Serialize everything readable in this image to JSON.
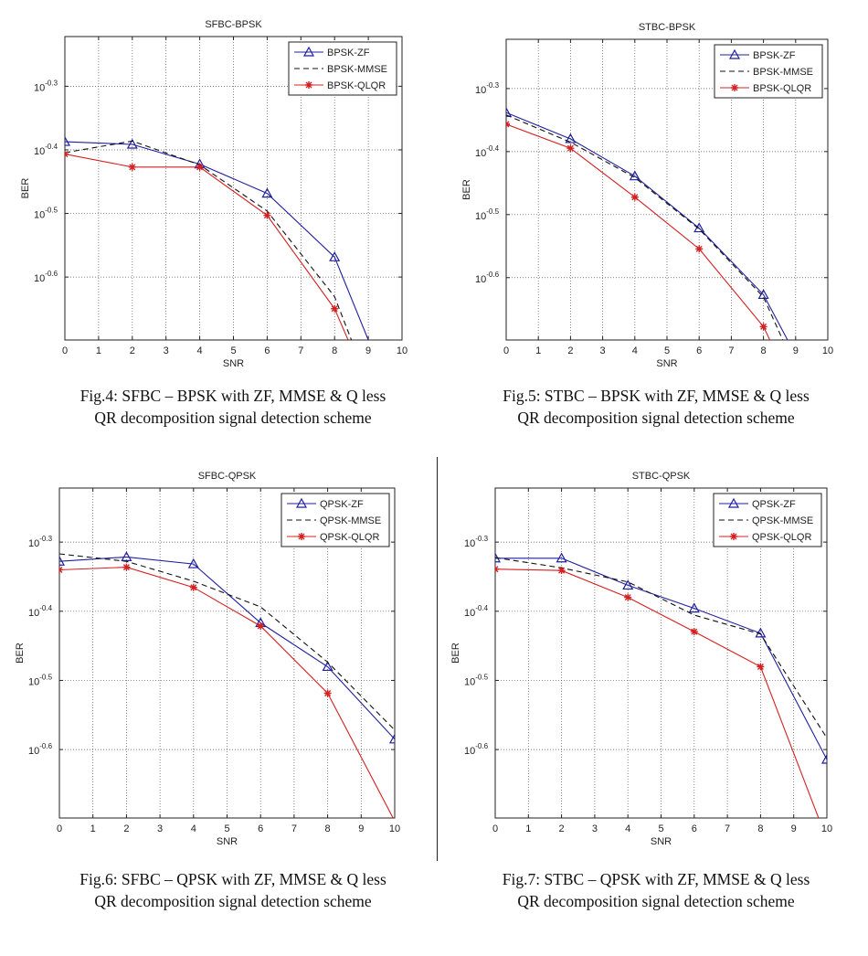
{
  "chart_data": [
    {
      "type": "line",
      "title": "SFBC-BPSK",
      "xlabel": "SNR",
      "ylabel": "BER",
      "yscale": "log",
      "xlim": [
        0,
        10
      ],
      "ylim": [
        0.2,
        0.6
      ],
      "xticks": [
        "0",
        "1",
        "2",
        "3",
        "4",
        "5",
        "6",
        "7",
        "8",
        "9",
        "10"
      ],
      "ytick_base": "10",
      "ytick_exponents": [
        "-0.3",
        "-0.4",
        "-0.5",
        "-0.6"
      ],
      "grid": true,
      "legend_position": "top-right",
      "caption": [
        "Fig.4: SFBC – BPSK with ZF, MMSE & Q less",
        "QR decomposition signal detection scheme"
      ],
      "series": [
        {
          "name": "BPSK-ZF",
          "color": "#1f1fa0",
          "style": "solid",
          "marker": "triangle",
          "x": [
            0,
            2,
            4,
            6,
            8,
            9
          ],
          "values": [
            0.41,
            0.406,
            0.378,
            0.34,
            0.27,
            0.2
          ]
        },
        {
          "name": "BPSK-MMSE",
          "color": "#111111",
          "style": "dashed",
          "marker": "none",
          "x": [
            0,
            2,
            4,
            6,
            8,
            8.5
          ],
          "values": [
            0.394,
            0.411,
            0.377,
            0.319,
            0.234,
            0.2
          ]
        },
        {
          "name": "BPSK-QLQR",
          "color": "#d42020",
          "style": "solid",
          "marker": "star",
          "x": [
            0,
            2,
            4,
            6,
            8,
            8.4
          ],
          "values": [
            0.392,
            0.374,
            0.374,
            0.314,
            0.224,
            0.2
          ]
        }
      ]
    },
    {
      "type": "line",
      "title": "STBC-BPSK",
      "xlabel": "SNR",
      "ylabel": "BER",
      "yscale": "log",
      "xlim": [
        0,
        10
      ],
      "ylim": [
        0.2,
        0.6
      ],
      "xticks": [
        "0",
        "1",
        "2",
        "3",
        "4",
        "5",
        "6",
        "7",
        "8",
        "9",
        "10"
      ],
      "ytick_base": "10",
      "ytick_exponents": [
        "-0.3",
        "-0.4",
        "-0.5",
        "-0.6"
      ],
      "grid": true,
      "legend_position": "top-right",
      "caption": [
        "Fig.5: STBC – BPSK with ZF, MMSE & Q less",
        "QR decomposition signal detection scheme"
      ],
      "series": [
        {
          "name": "BPSK-ZF",
          "color": "#1f1fa0",
          "style": "solid",
          "marker": "triangle",
          "x": [
            0,
            2,
            4,
            6,
            8,
            8.75
          ],
          "values": [
            0.459,
            0.417,
            0.364,
            0.301,
            0.236,
            0.2
          ]
        },
        {
          "name": "BPSK-MMSE",
          "color": "#111111",
          "style": "dashed",
          "marker": "none",
          "x": [
            0,
            2,
            4,
            6,
            8,
            8.6
          ],
          "values": [
            0.455,
            0.412,
            0.362,
            0.3,
            0.234,
            0.2
          ]
        },
        {
          "name": "BPSK-QLQR",
          "color": "#d42020",
          "style": "solid",
          "marker": "star",
          "x": [
            0,
            2,
            4,
            6,
            8,
            8.2
          ],
          "values": [
            0.44,
            0.403,
            0.337,
            0.279,
            0.21,
            0.2
          ]
        }
      ]
    },
    {
      "type": "line",
      "title": "SFBC-QPSK",
      "xlabel": "SNR",
      "ylabel": "BER",
      "yscale": "log",
      "xlim": [
        0,
        10
      ],
      "ylim": [
        0.2,
        0.6
      ],
      "xticks": [
        "0",
        "1",
        "2",
        "3",
        "4",
        "5",
        "6",
        "7",
        "8",
        "9",
        "10"
      ],
      "ytick_base": "10",
      "ytick_exponents": [
        "-0.3",
        "-0.4",
        "-0.5",
        "-0.6"
      ],
      "grid": true,
      "legend_position": "top-right",
      "caption": [
        "Fig.6: SFBC – QPSK with ZF, MMSE & Q less",
        "QR decomposition signal detection scheme"
      ],
      "series": [
        {
          "name": "QPSK-ZF",
          "color": "#1f1fa0",
          "style": "solid",
          "marker": "triangle",
          "x": [
            0,
            2,
            4,
            6,
            8,
            10
          ],
          "values": [
            0.47,
            0.477,
            0.466,
            0.383,
            0.331,
            0.26
          ]
        },
        {
          "name": "QPSK-MMSE",
          "color": "#111111",
          "style": "dashed",
          "marker": "none",
          "x": [
            0,
            2,
            4,
            6,
            8,
            10
          ],
          "values": [
            0.482,
            0.47,
            0.44,
            0.404,
            0.336,
            0.268
          ]
        },
        {
          "name": "QPSK-QLQR",
          "color": "#d42020",
          "style": "solid",
          "marker": "star",
          "x": [
            0,
            2,
            4,
            6,
            8,
            9.95
          ],
          "values": [
            0.457,
            0.461,
            0.431,
            0.379,
            0.303,
            0.2
          ]
        }
      ]
    },
    {
      "type": "line",
      "title": "STBC-QPSK",
      "xlabel": "SNR",
      "ylabel": "BER",
      "yscale": "log",
      "xlim": [
        0,
        10
      ],
      "ylim": [
        0.2,
        0.6
      ],
      "xticks": [
        "0",
        "1",
        "2",
        "3",
        "4",
        "5",
        "6",
        "7",
        "8",
        "9",
        "10"
      ],
      "ytick_base": "10",
      "ytick_exponents": [
        "-0.3",
        "-0.4",
        "-0.5",
        "-0.6"
      ],
      "grid": true,
      "legend_position": "top-right",
      "caption": [
        "Fig.7: STBC – QPSK with ZF, MMSE & Q less",
        "QR decomposition signal detection scheme"
      ],
      "series": [
        {
          "name": "QPSK-ZF",
          "color": "#1f1fa0",
          "style": "solid",
          "marker": "triangle",
          "x": [
            0,
            2,
            4,
            6,
            8,
            10
          ],
          "values": [
            0.475,
            0.475,
            0.434,
            0.402,
            0.37,
            0.243
          ]
        },
        {
          "name": "QPSK-MMSE",
          "color": "#111111",
          "style": "dashed",
          "marker": "none",
          "x": [
            0,
            2,
            4,
            6,
            8,
            10
          ],
          "values": [
            0.476,
            0.46,
            0.439,
            0.393,
            0.369,
            0.261
          ]
        },
        {
          "name": "QPSK-QLQR",
          "color": "#d42020",
          "style": "solid",
          "marker": "star",
          "x": [
            0,
            2,
            4,
            6,
            8,
            9.75
          ],
          "values": [
            0.458,
            0.456,
            0.417,
            0.372,
            0.331,
            0.2
          ]
        }
      ]
    }
  ]
}
